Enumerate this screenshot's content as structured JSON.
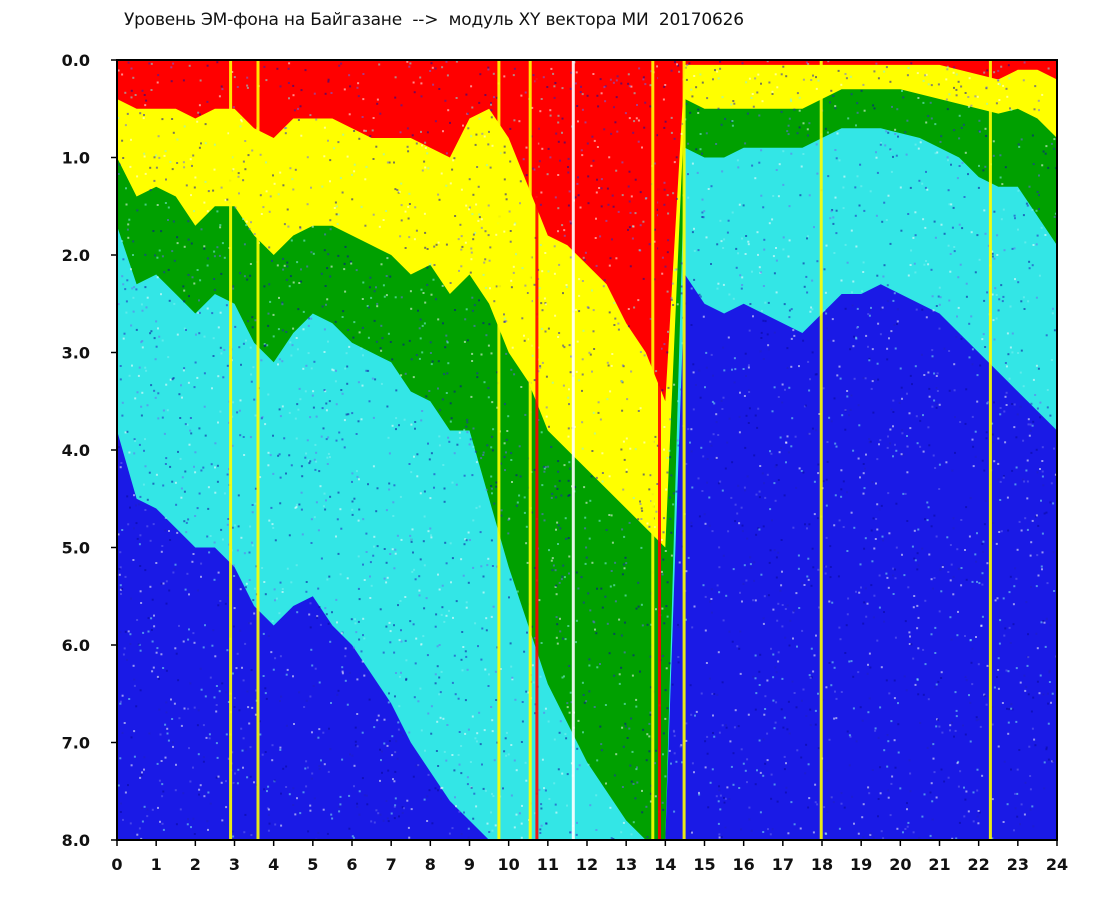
{
  "title": "Уровень ЭМ-фона на Байгазане  -->  модуль XY вектора МИ  20170626",
  "chart_data": {
    "type": "heatmap",
    "title": "Уровень ЭМ-фона на Байгазане  -->  модуль XY вектора МИ  20170626",
    "xlabel": "",
    "ylabel": "",
    "xlim": [
      0,
      24
    ],
    "ylim": [
      8.0,
      0.0
    ],
    "x_ticks": [
      "0",
      "1",
      "2",
      "3",
      "4",
      "5",
      "6",
      "7",
      "8",
      "9",
      "10",
      "11",
      "12",
      "13",
      "14",
      "15",
      "16",
      "17",
      "18",
      "19",
      "20",
      "21",
      "22",
      "23",
      "24"
    ],
    "y_ticks": [
      "0.0",
      "1.0",
      "2.0",
      "3.0",
      "4.0",
      "5.0",
      "6.0",
      "7.0",
      "8.0"
    ],
    "grid": false,
    "colors": [
      "#ff0000",
      "#ffff00",
      "#00a000",
      "#33e6e6",
      "#1a1ae6"
    ],
    "color_levels": [
      "red",
      "yellow",
      "green",
      "cyan",
      "blue"
    ],
    "x": [
      0,
      0.5,
      1,
      1.5,
      2,
      2.5,
      3,
      3.5,
      4,
      4.5,
      5,
      5.5,
      6,
      6.5,
      7,
      7.5,
      8,
      8.5,
      9,
      9.5,
      10,
      10.5,
      11,
      11.5,
      12,
      12.5,
      13,
      13.5,
      14,
      14.5,
      15,
      15.5,
      16,
      16.5,
      17,
      17.5,
      18,
      18.5,
      19,
      19.5,
      20,
      20.5,
      21,
      21.5,
      22,
      22.5,
      23,
      23.5,
      24
    ],
    "red_band_end": [
      0.4,
      0.5,
      0.5,
      0.5,
      0.6,
      0.5,
      0.5,
      0.7,
      0.8,
      0.6,
      0.6,
      0.6,
      0.7,
      0.8,
      0.8,
      0.8,
      0.9,
      1.0,
      0.6,
      0.5,
      0.8,
      1.3,
      1.8,
      1.9,
      2.1,
      2.3,
      2.7,
      3.0,
      3.5,
      0.05,
      0.05,
      0.05,
      0.05,
      0.05,
      0.05,
      0.05,
      0.05,
      0.05,
      0.05,
      0.05,
      0.05,
      0.05,
      0.05,
      0.1,
      0.15,
      0.2,
      0.1,
      0.1,
      0.2
    ],
    "yellow_band_end": [
      1.0,
      1.4,
      1.3,
      1.4,
      1.7,
      1.5,
      1.5,
      1.8,
      2.0,
      1.8,
      1.7,
      1.7,
      1.8,
      1.9,
      2.0,
      2.2,
      2.1,
      2.4,
      2.2,
      2.5,
      3.0,
      3.3,
      3.8,
      4.0,
      4.2,
      4.4,
      4.6,
      4.8,
      5.0,
      0.4,
      0.5,
      0.5,
      0.5,
      0.5,
      0.5,
      0.5,
      0.4,
      0.3,
      0.3,
      0.3,
      0.3,
      0.35,
      0.4,
      0.45,
      0.5,
      0.55,
      0.5,
      0.6,
      0.8
    ],
    "green_band_end": [
      1.7,
      2.3,
      2.2,
      2.4,
      2.6,
      2.4,
      2.5,
      2.9,
      3.1,
      2.8,
      2.6,
      2.7,
      2.9,
      3.0,
      3.1,
      3.4,
      3.5,
      3.8,
      3.8,
      4.5,
      5.2,
      5.8,
      6.4,
      6.8,
      7.2,
      7.5,
      7.8,
      8.0,
      8.0,
      0.9,
      1.0,
      1.0,
      0.9,
      0.9,
      0.9,
      0.9,
      0.8,
      0.7,
      0.7,
      0.7,
      0.75,
      0.8,
      0.9,
      1.0,
      1.2,
      1.3,
      1.3,
      1.6,
      1.9
    ],
    "cyan_band_end": [
      3.8,
      4.5,
      4.6,
      4.8,
      5.0,
      5.0,
      5.2,
      5.6,
      5.8,
      5.6,
      5.5,
      5.8,
      6.0,
      6.3,
      6.6,
      7.0,
      7.3,
      7.6,
      7.8,
      8.0,
      8.0,
      8.0,
      8.0,
      8.0,
      8.0,
      8.0,
      8.0,
      8.0,
      8.0,
      2.2,
      2.5,
      2.6,
      2.5,
      2.6,
      2.7,
      2.8,
      2.6,
      2.4,
      2.4,
      2.3,
      2.4,
      2.5,
      2.6,
      2.8,
      3.0,
      3.2,
      3.4,
      3.6,
      3.8
    ],
    "vertical_stripes": [
      {
        "x": 2.9,
        "color": "yellow"
      },
      {
        "x": 3.6,
        "color": "yellow"
      },
      {
        "x": 9.75,
        "color": "yellow"
      },
      {
        "x": 10.55,
        "color": "yellow"
      },
      {
        "x": 10.72,
        "color": "red"
      },
      {
        "x": 11.65,
        "color": "white"
      },
      {
        "x": 13.68,
        "color": "yellow"
      },
      {
        "x": 13.85,
        "color": "red"
      },
      {
        "x": 14.48,
        "color": "yellow"
      },
      {
        "x": 17.98,
        "color": "yellow"
      },
      {
        "x": 22.3,
        "color": "yellow"
      }
    ]
  }
}
